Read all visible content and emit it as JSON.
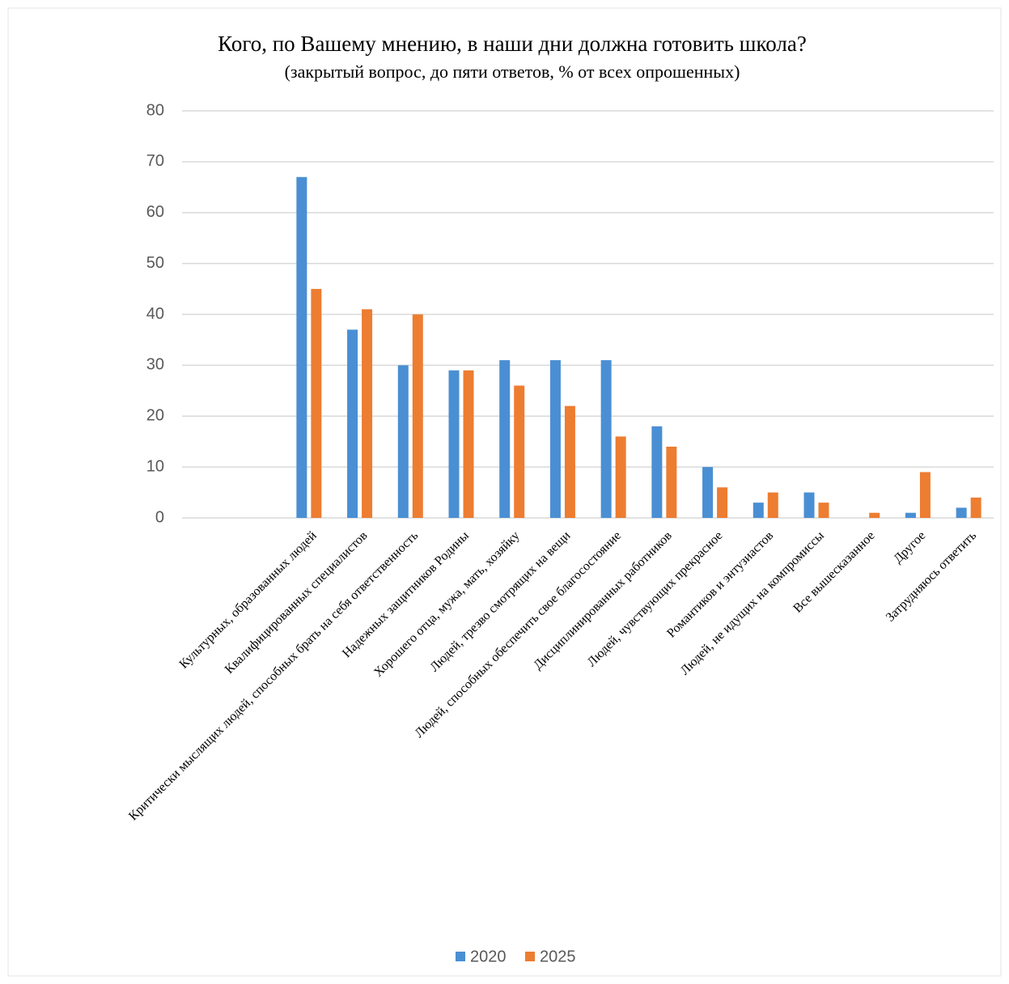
{
  "chart_data": {
    "type": "bar",
    "title": "Кого, по Вашему мнению, в наши дни должна готовить школа?",
    "subtitle": "(закрытый вопрос, до пяти ответов, % от всех опрошенных)",
    "categories": [
      "Культурных, образованных людей",
      "Квалифицированных специалистов",
      "Критически мыслящих людей, способных брать на себя ответственность",
      "Надежных защитников Родины",
      "Хорошего отца, мужа, мать, хозяйку",
      "Людей, трезво смотрящих на вещи",
      "Людей, способных обеспечить свое благосостояние",
      "Дисциплинированных работников",
      "Людей, чувствующих прекрасное",
      "Романтиков и энтузиастов",
      "Людей, не идущих на компромиссы",
      "Все вышесказанное",
      "Другое",
      "Затрудняюсь ответить"
    ],
    "series": [
      {
        "name": "2020",
        "color": "#4a8fd3",
        "values": [
          67,
          37,
          30,
          29,
          31,
          31,
          31,
          18,
          10,
          3,
          5,
          0,
          1,
          2
        ]
      },
      {
        "name": "2025",
        "color": "#ed7d31",
        "values": [
          45,
          41,
          40,
          29,
          26,
          22,
          16,
          14,
          6,
          5,
          3,
          1,
          9,
          4
        ]
      }
    ],
    "ylim": [
      0,
      80
    ],
    "yticks": [
      0,
      10,
      20,
      30,
      40,
      50,
      60,
      70,
      80
    ],
    "grid": true,
    "legend": "bottom"
  }
}
